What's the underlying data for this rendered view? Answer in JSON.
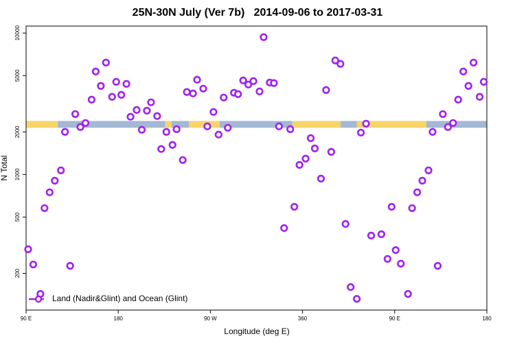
{
  "chart_data": {
    "type": "scatter",
    "title": "25N-30N July (Ver 7b)   2014-09-06 to 2017-03-31",
    "xlabel": "Longitude (deg E)",
    "ylabel": "N Total",
    "log_y": true,
    "xlim": [
      90,
      540
    ],
    "ylim": [
      110,
      11200
    ],
    "xticks": [
      {
        "value": 90,
        "label": "90 E"
      },
      180,
      {
        "value": 270,
        "label": "90 W"
      },
      360,
      {
        "value": 450,
        "label": "90 E"
      },
      {
        "value": 540,
        "label": "180"
      }
    ],
    "yticks": [
      200,
      500,
      1000,
      2000,
      5000,
      10000
    ],
    "legend": "bottom-left",
    "band": {
      "ylim": [
        2140,
        2390
      ],
      "segments": [
        {
          "start": 90,
          "end": 121,
          "color": "#f7d56a"
        },
        {
          "start": 121,
          "end": 226,
          "color": "#a3b8d4"
        },
        {
          "start": 226,
          "end": 232,
          "color": "#f7d56a"
        },
        {
          "start": 232,
          "end": 249,
          "color": "#a3b8d4"
        },
        {
          "start": 249,
          "end": 279,
          "color": "#f7d56a"
        },
        {
          "start": 279,
          "end": 350,
          "color": "#a3b8d4"
        },
        {
          "start": 350,
          "end": 397,
          "color": "#f7d56a"
        },
        {
          "start": 397,
          "end": 413,
          "color": "#a3b8d4"
        },
        {
          "start": 413,
          "end": 481,
          "color": "#f7d56a"
        },
        {
          "start": 481,
          "end": 540,
          "color": "#a3b8d4"
        }
      ]
    },
    "series": [
      {
        "name": "Land (Nadir&Glint) and Ocean (Glint)",
        "color": "#a020f0",
        "x": [
          92,
          97,
          104,
          108,
          113,
          118,
          124,
          128,
          133,
          138,
          143,
          148,
          154,
          158,
          163,
          168,
          174,
          178,
          183,
          188,
          192,
          198,
          203,
          208,
          212,
          218,
          222,
          227,
          233,
          237,
          243,
          247,
          253,
          257,
          263,
          267,
          273,
          278,
          283,
          287,
          293,
          297,
          302,
          307,
          312,
          318,
          322,
          328,
          332,
          337,
          342,
          348,
          352,
          357,
          363,
          368,
          372,
          378,
          383,
          388,
          392,
          397,
          402,
          407,
          413,
          417,
          422,
          427,
          437,
          443,
          447,
          451,
          456,
          463,
          467,
          472,
          477,
          483,
          487,
          492,
          497,
          502,
          507,
          512,
          517,
          522,
          527,
          533,
          537
        ],
        "values": [
          296,
          231,
          143,
          578,
          748,
          904,
          1069,
          2000,
          226,
          2673,
          2163,
          2312,
          3381,
          5346,
          4227,
          6180,
          3540,
          4519,
          3656,
          4371,
          2559,
          2857,
          2070,
          2825,
          3236,
          2588,
          1514,
          2000,
          1618,
          2089,
          1265,
          3828,
          3741,
          4677,
          4046,
          2188,
          2767,
          1914,
          3499,
          2138,
          3784,
          3698,
          4624,
          4325,
          4571,
          3865,
          9354,
          4467,
          4426,
          2188,
          418,
          2089,
          591,
          1169,
          1294,
          1807,
          1528,
          935,
          3954,
          1445,
          6397,
          6050,
          447,
          160,
          132,
          1977,
          2286,
          370,
          378,
          253,
          591,
          292,
          234,
          143,
          578,
          748,
          904,
          1069,
          2000,
          226,
          2673,
          2163,
          2312,
          3381,
          5346,
          4227,
          6180,
          3540,
          4519
        ]
      }
    ]
  }
}
